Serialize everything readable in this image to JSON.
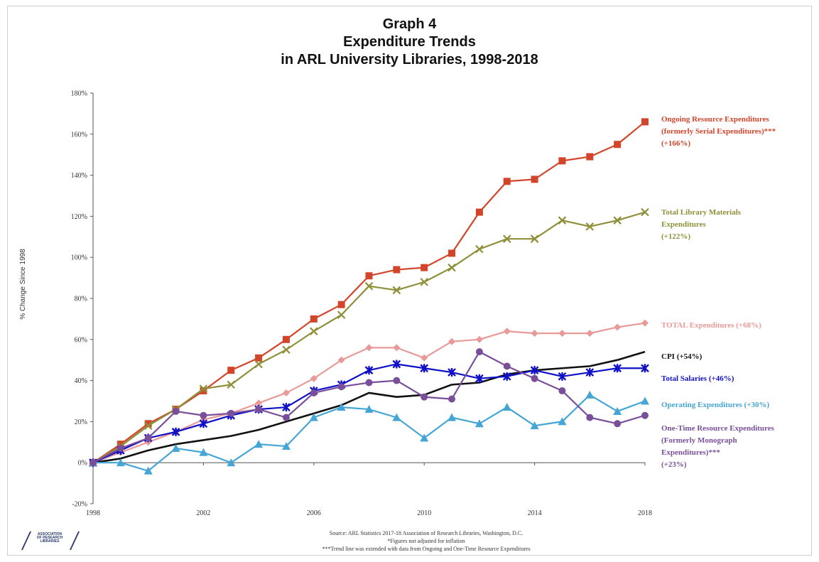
{
  "title_lines": [
    "Graph 4",
    "Expenditure Trends",
    "in ARL University Libraries, 1998-2018"
  ],
  "chart_data": {
    "type": "line",
    "title": "Graph 4 Expenditure Trends in ARL University Libraries, 1998-2018",
    "ylabel": "% Change Since 1998",
    "xlabel": "",
    "xlim": [
      1998,
      2018
    ],
    "ylim": [
      -20,
      180
    ],
    "x_ticks": [
      1998,
      2002,
      2006,
      2010,
      2014,
      2018
    ],
    "x_tick_labels": [
      "1998",
      "2002",
      "2006",
      "2010",
      "2014",
      "2018"
    ],
    "y_ticks": [
      -20,
      0,
      20,
      40,
      60,
      80,
      100,
      120,
      140,
      160,
      180
    ],
    "y_tick_labels": [
      "-20%",
      "0%",
      "20%",
      "40%",
      "60%",
      "80%",
      "100%",
      "120%",
      "140%",
      "160%",
      "180%"
    ],
    "grid": false,
    "legend": "inline labels at right",
    "x": [
      1998,
      1999,
      2000,
      2001,
      2002,
      2003,
      2004,
      2005,
      2006,
      2007,
      2008,
      2009,
      2010,
      2011,
      2012,
      2013,
      2014,
      2015,
      2016,
      2017,
      2018
    ],
    "series": [
      {
        "name": "Ongoing Resource Expenditures (formerly Serial Expenditures)*** (+166%)",
        "label_lines": [
          "Ongoing Resource Expenditures",
          "(formerly Serial Expenditures)***",
          "(+166%)"
        ],
        "color": "#d2452b",
        "marker": "square",
        "values": [
          0,
          9,
          19,
          26,
          35,
          45,
          51,
          60,
          70,
          77,
          91,
          94,
          95,
          102,
          122,
          137,
          138,
          147,
          149,
          155,
          166
        ]
      },
      {
        "name": "Total Library Materials Expenditures (+122%)",
        "label_lines": [
          "Total Library Materials",
          "Expenditures",
          "(+122%)"
        ],
        "color": "#8f8f3a",
        "marker": "x",
        "values": [
          0,
          8,
          18,
          26,
          36,
          38,
          48,
          55,
          64,
          72,
          86,
          84,
          88,
          95,
          104,
          109,
          109,
          118,
          115,
          118,
          122
        ]
      },
      {
        "name": "TOTAL Expenditures (+68%)",
        "label_lines": [
          "TOTAL Expenditures (+68%)"
        ],
        "color": "#e89a98",
        "marker": "diamond",
        "values": [
          0,
          5,
          10,
          15,
          21,
          24,
          29,
          34,
          41,
          50,
          56,
          56,
          51,
          59,
          60,
          64,
          63,
          63,
          63,
          66,
          68
        ]
      },
      {
        "name": "CPI (+54%)",
        "label_lines": [
          "CPI (+54%)"
        ],
        "color": "#111111",
        "marker": "none",
        "values": [
          0,
          2,
          6,
          9,
          11,
          13,
          16,
          20,
          24,
          28,
          34,
          32,
          33,
          38,
          39,
          43,
          45,
          46,
          47,
          50,
          54
        ]
      },
      {
        "name": "Total Salaries (+46%)",
        "label_lines": [
          "Total Salaries (+46%)"
        ],
        "color": "#1010c8",
        "marker": "asterisk",
        "values": [
          0,
          6,
          12,
          15,
          19,
          23,
          26,
          27,
          35,
          38,
          45,
          48,
          46,
          44,
          41,
          42,
          45,
          42,
          44,
          46,
          46
        ]
      },
      {
        "name": "Operating Expenditures (+30%)",
        "label_lines": [
          "Operating Expenditures (+30%)"
        ],
        "color": "#45a6d6",
        "marker": "triangle",
        "values": [
          0,
          0,
          -4,
          7,
          5,
          0,
          9,
          8,
          22,
          27,
          26,
          22,
          12,
          22,
          19,
          27,
          18,
          20,
          33,
          25,
          30
        ]
      },
      {
        "name": "One-Time Resource Expenditures (Formerly Monograph Expenditures)*** (+23%)",
        "label_lines": [
          "One-Time Resource Expenditures",
          "(Formerly Monograph",
          "Expenditures)***",
          "(+23%)"
        ],
        "color": "#7a4f9a",
        "marker": "circle",
        "values": [
          0,
          7,
          12,
          25,
          23,
          24,
          26,
          22,
          34,
          37,
          39,
          40,
          32,
          31,
          54,
          47,
          41,
          35,
          22,
          19,
          23
        ]
      }
    ]
  },
  "footnotes": [
    "Source: ARL Statistics 2017-18 Association of Research Libraries, Washington, D.C.",
    "*Figures not adjusted for inflation",
    "***Trend line was extended with data from Ongoing and One-Time Resource Expenditures"
  ],
  "logo_lines": [
    "ASSOCIATION",
    "OF RESEARCH",
    "LIBRARIES"
  ]
}
